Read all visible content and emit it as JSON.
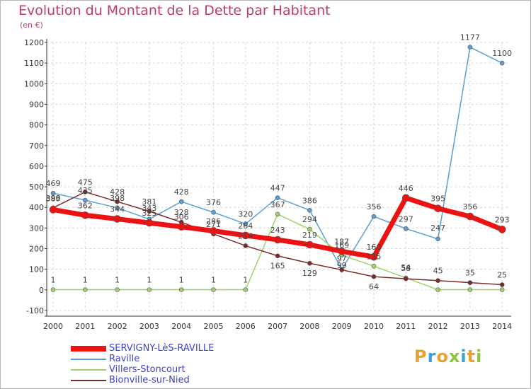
{
  "title": "Evolution du Montant de la Dette par Habitant",
  "subtitle": "(en €)",
  "brand": [
    "P",
    "r",
    "o",
    "x",
    "i",
    "t",
    "i"
  ],
  "brand_colors": [
    "#e8a12c",
    "#3ba0d8",
    "#e8a12c",
    "#8cc43c",
    "#3ba0d8",
    "#e8a12c",
    "#8cc43c"
  ],
  "chart_data": {
    "type": "line",
    "title": "Evolution du Montant de la Dette par Habitant",
    "ylabel": "(en €)",
    "xlabel": "",
    "ylim": [
      -100,
      1200
    ],
    "yticks": [
      -100,
      0,
      100,
      200,
      300,
      400,
      500,
      600,
      700,
      800,
      900,
      1000,
      1100,
      1200
    ],
    "x": [
      "2000",
      "2001",
      "2002",
      "2003",
      "2004",
      "2005",
      "2006",
      "2007",
      "2008",
      "2009",
      "2010",
      "2011",
      "2012",
      "2013",
      "2014"
    ],
    "grid": true,
    "legend": "bottom-left",
    "series": [
      {
        "name": "Raville",
        "color": "#5b9fd3",
        "values": [
          469,
          435,
          398,
          343,
          428,
          376,
          320,
          447,
          386,
          99,
          356,
          297,
          247,
          1177,
          1100
        ],
        "labels": [
          "469",
          "435",
          "398",
          "343",
          "428",
          "376",
          "320",
          "447",
          "386",
          "99",
          "356",
          "297",
          "247",
          "1177",
          "1100"
        ],
        "label_dy": [
          -10,
          -10,
          -10,
          -12,
          -10,
          -10,
          -10,
          -10,
          -10,
          -2,
          -10,
          -10,
          -12,
          -10,
          -10
        ]
      },
      {
        "name": "Villers-Stoncourt",
        "color": "#9ed36a",
        "values": [
          1,
          1,
          1,
          1,
          1,
          1,
          1,
          367,
          294,
          169,
          115,
          58,
          1,
          1,
          1
        ],
        "labels": [
          "1",
          "1",
          "1",
          "1",
          "1",
          "1",
          "1",
          "367",
          "294",
          "169",
          "115",
          "58",
          "",
          "",
          ""
        ],
        "label_dy": [
          -10,
          -10,
          -10,
          -10,
          -10,
          -10,
          -10,
          -10,
          -10,
          -10,
          -10,
          -10,
          -10,
          -10,
          -10
        ]
      },
      {
        "name": "Bionville-sur-Nied",
        "color": "#7a2a2a",
        "values": [
          398,
          475,
          428,
          381,
          328,
          271,
          214,
          165,
          129,
          97,
          64,
          54,
          45,
          35,
          25
        ],
        "labels": [
          "398",
          "475",
          "428",
          "381",
          "328",
          "271",
          "214",
          "165",
          "129",
          "97",
          "64",
          "54",
          "45",
          "35",
          "25"
        ],
        "label_dy": [
          -10,
          -10,
          -10,
          -10,
          -10,
          -10,
          -10,
          18,
          18,
          -12,
          18,
          -12,
          -10,
          -10,
          -10
        ]
      },
      {
        "name": "SERVIGNY-LèS-RAVILLE",
        "color": "#ee1111",
        "values": [
          389,
          362,
          344,
          325,
          306,
          286,
          264,
          243,
          219,
          187,
          160,
          446,
          395,
          356,
          293
        ],
        "labels": [
          "389",
          "362",
          "344",
          "325",
          "306",
          "286",
          "264",
          "243",
          "219",
          "187",
          "160",
          "446",
          "395",
          "356",
          "293"
        ],
        "label_dy": [
          -12,
          -10,
          -10,
          -10,
          -10,
          -10,
          -10,
          -10,
          -10,
          -10,
          -10,
          -10,
          -10,
          -10,
          -10
        ]
      }
    ],
    "legend_order": [
      "SERVIGNY-LèS-RAVILLE",
      "Raville",
      "Villers-Stoncourt",
      "Bionville-sur-Nied"
    ]
  }
}
